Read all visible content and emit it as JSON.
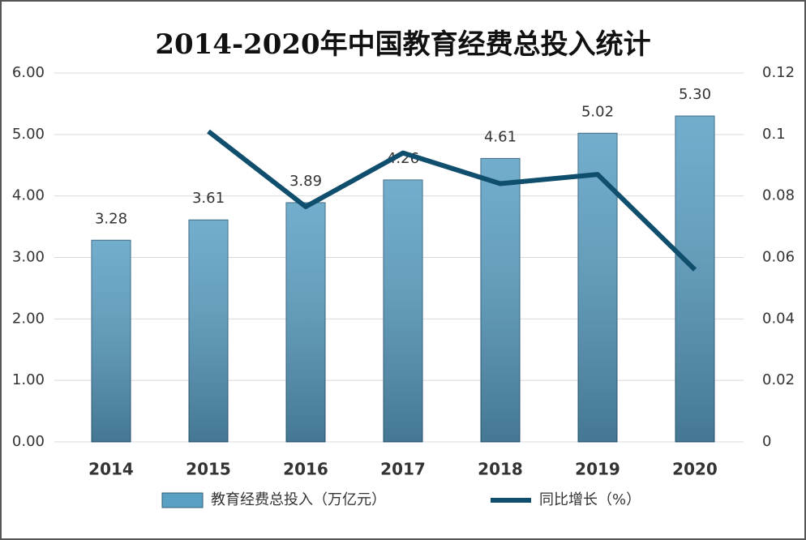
{
  "chart_data": {
    "type": "bar+line",
    "title": "2014-2020年中国教育经费总投入统计",
    "categories": [
      "2014",
      "2015",
      "2016",
      "2017",
      "2018",
      "2019",
      "2020"
    ],
    "series": [
      {
        "name": "教育经费总投入（万亿元）",
        "type": "bar",
        "color": "#5a9fc4",
        "values": [
          3.28,
          3.61,
          3.89,
          4.26,
          4.61,
          5.02,
          5.3
        ],
        "value_labels": [
          "3.28",
          "3.61",
          "3.89",
          "4.26",
          "4.61",
          "5.02",
          "5.30"
        ]
      },
      {
        "name": "同比增长（%）",
        "type": "line",
        "axis": "y2",
        "color": "#104e6e",
        "values": [
          null,
          0.101,
          0.0765,
          0.094,
          0.084,
          0.087,
          0.056
        ]
      }
    ],
    "ylim": [
      0,
      6
    ],
    "yticks": [
      {
        "value": 0,
        "label": "0.00"
      },
      {
        "value": 1,
        "label": "1.00"
      },
      {
        "value": 2,
        "label": "2.00"
      },
      {
        "value": 3,
        "label": "3.00"
      },
      {
        "value": 4,
        "label": "4.00"
      },
      {
        "value": 5,
        "label": "5.00"
      },
      {
        "value": 6,
        "label": "6.00"
      }
    ],
    "y2lim": [
      0,
      0.12
    ],
    "y2ticks": [
      0,
      0.02,
      0.04,
      0.06,
      0.08,
      0.1,
      0.12
    ],
    "grid": true
  }
}
